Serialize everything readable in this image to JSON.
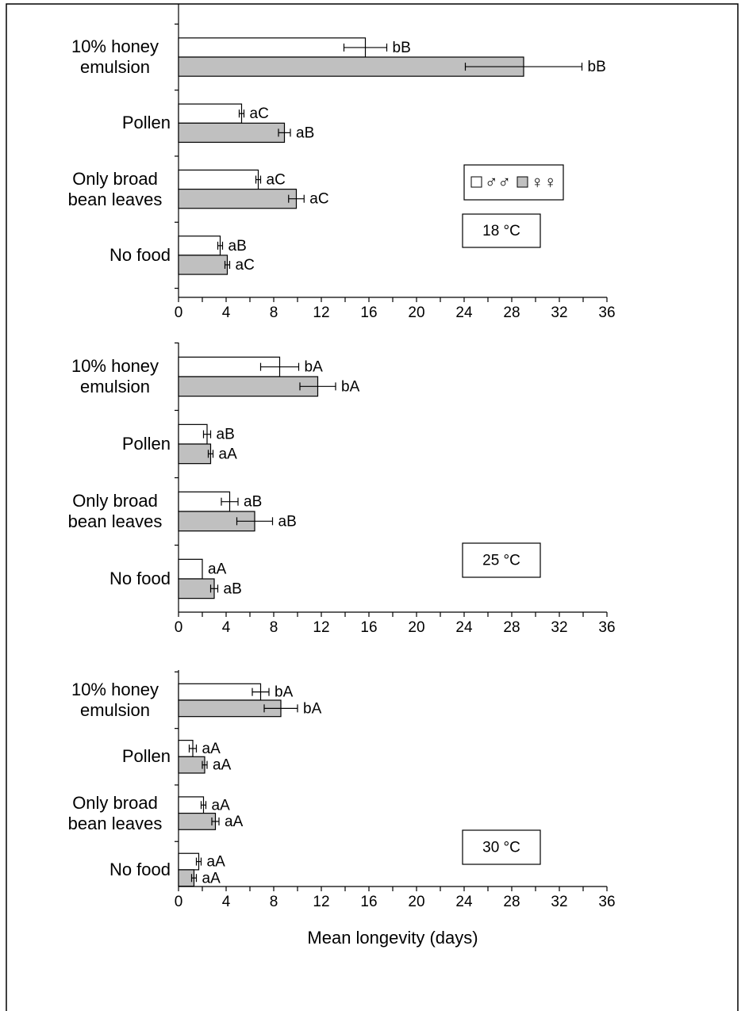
{
  "chart_data": [
    {
      "type": "bar",
      "orientation": "horizontal",
      "categories": [
        "10% honey emulsion",
        "Pollen",
        "Only broad bean leaves",
        "No food"
      ],
      "series": [
        {
          "name": "♂♂",
          "color": "#ffffff",
          "values": [
            15.7,
            5.3,
            6.7,
            3.5
          ],
          "errors": [
            1.8,
            0.2,
            0.2,
            0.2
          ],
          "letters": [
            "bB",
            "aC",
            "aC",
            "aB"
          ]
        },
        {
          "name": "♀♀",
          "color": "#c0c0c0",
          "values": [
            29.0,
            8.9,
            9.9,
            4.1
          ],
          "errors": [
            4.9,
            0.5,
            0.65,
            0.2
          ],
          "letters": [
            "bB",
            "aB",
            "aC",
            "aC"
          ]
        }
      ],
      "xlim": [
        0,
        36
      ],
      "xticks": [
        0,
        4,
        8,
        12,
        16,
        20,
        24,
        28,
        32,
        36
      ],
      "xminorticks": [
        2,
        6,
        10,
        14,
        18,
        22,
        26,
        30,
        34
      ],
      "annotation": "18 °C",
      "legend": true
    },
    {
      "type": "bar",
      "orientation": "horizontal",
      "categories": [
        "10% honey emulsion",
        "Pollen",
        "Only broad bean leaves",
        "No food"
      ],
      "series": [
        {
          "color": "#ffffff",
          "values": [
            8.5,
            2.4,
            4.3,
            2.0
          ],
          "errors": [
            1.6,
            0.3,
            0.7,
            null
          ],
          "letters": [
            "bA",
            "aB",
            "aB",
            "aA"
          ]
        },
        {
          "color": "#c0c0c0",
          "values": [
            11.7,
            2.7,
            6.4,
            3.0
          ],
          "errors": [
            1.5,
            0.2,
            1.5,
            0.3
          ],
          "letters": [
            "bA",
            "aA",
            "aB",
            "aB"
          ]
        }
      ],
      "xlim": [
        0,
        36
      ],
      "xticks": [
        0,
        4,
        8,
        12,
        16,
        20,
        24,
        28,
        32,
        36
      ],
      "xminorticks": [
        2,
        6,
        10,
        14,
        18,
        22,
        26,
        30,
        34
      ],
      "annotation": "25 °C",
      "legend": false
    },
    {
      "type": "bar",
      "orientation": "horizontal",
      "categories": [
        "10% honey emulsion",
        "Pollen",
        "Only broad bean leaves",
        "No food"
      ],
      "series": [
        {
          "color": "#ffffff",
          "values": [
            6.9,
            1.2,
            2.1,
            1.7
          ],
          "errors": [
            0.7,
            0.3,
            0.2,
            0.2
          ],
          "letters": [
            "bA",
            "aA",
            "aA",
            "aA"
          ]
        },
        {
          "color": "#c0c0c0",
          "values": [
            8.6,
            2.2,
            3.1,
            1.3
          ],
          "errors": [
            1.4,
            0.2,
            0.3,
            0.2
          ],
          "letters": [
            "bA",
            "aA",
            "aA",
            "aA"
          ]
        }
      ],
      "xlim": [
        0,
        36
      ],
      "xticks": [
        0,
        4,
        8,
        12,
        16,
        20,
        24,
        28,
        32,
        36
      ],
      "xminorticks": [
        2,
        6,
        10,
        14,
        18,
        22,
        26,
        30,
        34
      ],
      "annotation": "30 °C",
      "legend": false,
      "xlabel": "Mean longevity (days)"
    }
  ]
}
